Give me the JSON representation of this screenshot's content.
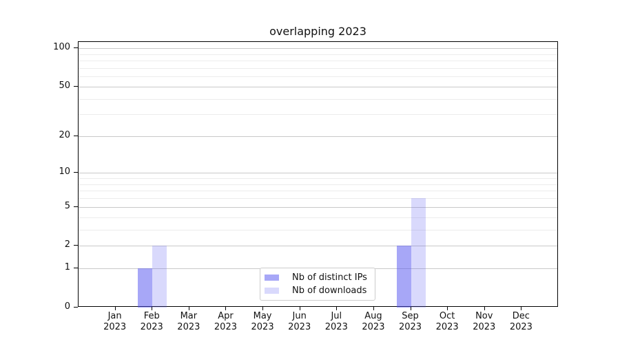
{
  "chart_data": {
    "type": "bar",
    "title": "overlapping 2023",
    "year_label": "2023",
    "months": [
      "Jan",
      "Feb",
      "Mar",
      "Apr",
      "May",
      "Jun",
      "Jul",
      "Aug",
      "Sep",
      "Oct",
      "Nov",
      "Dec"
    ],
    "series": [
      {
        "name": "Nb of distinct IPs",
        "color": "rgba(80,80,240,0.50)",
        "color_hex": "#a8a8f7",
        "values": [
          0,
          1,
          0,
          0,
          0,
          0,
          0,
          0,
          2,
          0,
          0,
          0
        ]
      },
      {
        "name": "Nb of downloads",
        "color": "rgba(80,80,240,0.22)",
        "color_hex": "#d9dbfb",
        "values": [
          0,
          2,
          0,
          0,
          0,
          0,
          0,
          0,
          6,
          0,
          0,
          0
        ]
      }
    ],
    "y_axis": {
      "scale": "log1p",
      "major_ticks": [
        0,
        1,
        2,
        5,
        10,
        20,
        50,
        100
      ],
      "minor_gridlines": [
        3,
        4,
        6,
        7,
        8,
        9,
        30,
        40,
        60,
        70,
        80,
        90
      ],
      "max": 100
    },
    "legend_position": "lower center inside",
    "grid": true,
    "colors": {
      "major_grid": "#c9c9c9",
      "minor_grid": "#ececec",
      "axis": "#000000",
      "legend_border": "#cccccc",
      "background": "#ffffff"
    }
  }
}
